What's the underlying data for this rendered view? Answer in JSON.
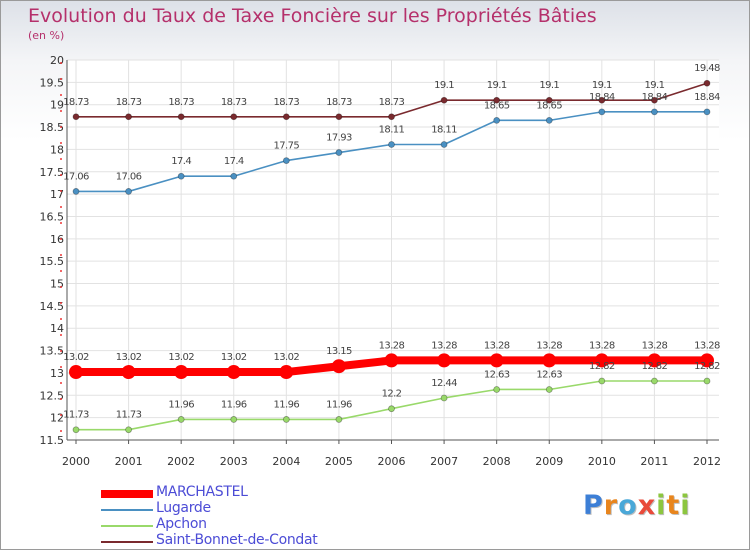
{
  "title": "Evolution du Taux de Taxe Foncière sur les Propriétés Bâties",
  "unit_label": "(en %)",
  "logo": {
    "text": "Proxiti",
    "letters": [
      "P",
      "r",
      "o",
      "x",
      "i",
      "t",
      "i"
    ],
    "colors": [
      "#3d7fd6",
      "#e8851d",
      "#4aa8d8",
      "#e94a3a",
      "#8cc63f",
      "#e8851d",
      "#8cc63f"
    ]
  },
  "chart_data": {
    "type": "line",
    "title": "Evolution du Taux de Taxe Foncière sur les Propriétés Bâties",
    "ylabel": "(en %)",
    "x": [
      "2000",
      "2001",
      "2002",
      "2003",
      "2004",
      "2005",
      "2006",
      "2007",
      "2008",
      "2009",
      "2010",
      "2011",
      "2012"
    ],
    "ylim": [
      11.5,
      20
    ],
    "yticks": [
      "11.5",
      "12",
      "12.5",
      "13",
      "13.5",
      "14",
      "14.5",
      "15",
      "15.5",
      "16",
      "16.5",
      "17",
      "17.5",
      "18",
      "18.5",
      "19",
      "19.5",
      "20"
    ],
    "grid": true,
    "legend_position": "bottom-left",
    "series": [
      {
        "name": "Saint-Bonnet-de-Condat",
        "color": "#7a2a2e",
        "values": [
          18.73,
          18.73,
          18.73,
          18.73,
          18.73,
          18.73,
          18.73,
          19.1,
          19.1,
          19.1,
          19.1,
          19.1,
          19.48
        ],
        "labels": [
          "18.73",
          "18.73",
          "18.73",
          "18.73",
          "18.73",
          "18.73",
          "18.73",
          "19.1",
          "19.1",
          "19.1",
          "19.1",
          "19.1",
          "19.48"
        ]
      },
      {
        "name": "Lugarde",
        "color": "#4a90c2",
        "values": [
          17.06,
          17.06,
          17.4,
          17.4,
          17.75,
          17.93,
          18.11,
          18.11,
          18.65,
          18.65,
          18.84,
          18.84,
          18.84
        ],
        "labels": [
          "17.06",
          "17.06",
          "17.4",
          "17.4",
          "17.75",
          "17.93",
          "18.11",
          "18.11",
          "18.65",
          "18.65",
          "18.84",
          "18.84",
          "18.84"
        ]
      },
      {
        "name": "MARCHASTEL",
        "color": "#ff0000",
        "values": [
          13.02,
          13.02,
          13.02,
          13.02,
          13.02,
          13.15,
          13.28,
          13.28,
          13.28,
          13.28,
          13.28,
          13.28,
          13.28
        ],
        "labels": [
          "13.02",
          "13.02",
          "13.02",
          "13.02",
          "13.02",
          "13.15",
          "13.28",
          "13.28",
          "13.28",
          "13.28",
          "13.28",
          "13.28",
          "13.28"
        ]
      },
      {
        "name": "Apchon",
        "color": "#99d96a",
        "values": [
          11.73,
          11.73,
          11.96,
          11.96,
          11.96,
          11.96,
          12.2,
          12.44,
          12.63,
          12.63,
          12.82,
          12.82,
          12.82
        ],
        "labels": [
          "11.73",
          "11.73",
          "11.96",
          "11.96",
          "11.96",
          "11.96",
          "12.2",
          "12.44",
          "12.63",
          "12.63",
          "12.82",
          "12.82",
          "12.82"
        ]
      }
    ],
    "legend_order": [
      "MARCHASTEL",
      "Lugarde",
      "Apchon",
      "Saint-Bonnet-de-Condat"
    ]
  }
}
